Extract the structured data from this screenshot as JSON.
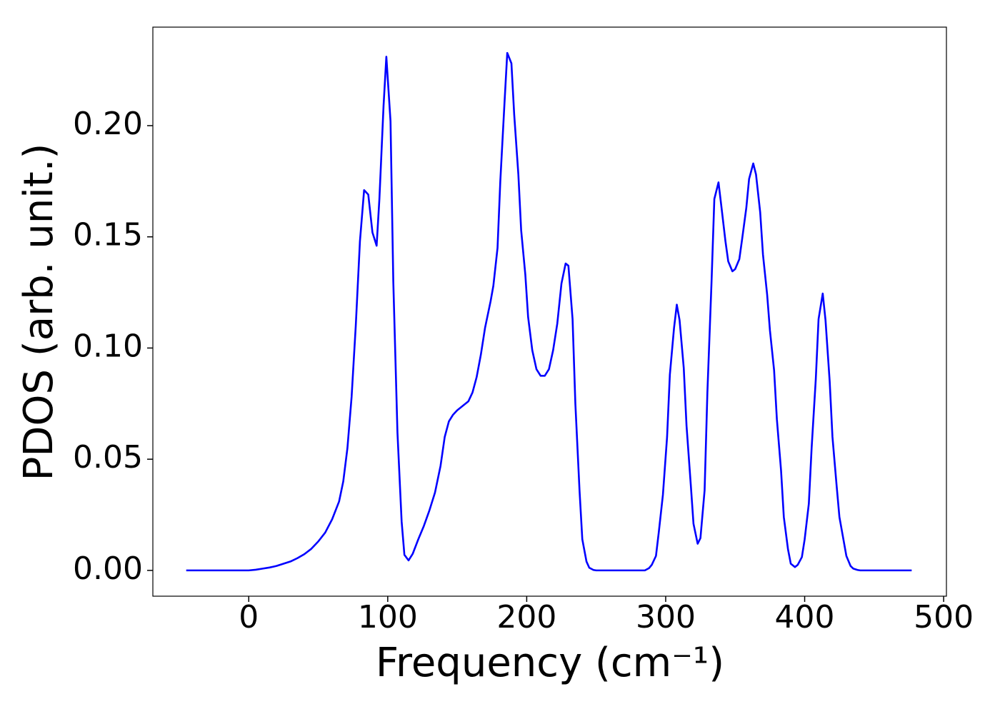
{
  "chart_data": {
    "type": "line",
    "xlabel": "Frequency (cm⁻¹)",
    "ylabel": "PDOS (arb. unit.)",
    "xlim": [
      -69,
      502
    ],
    "ylim": [
      -0.0116,
      0.2443
    ],
    "xticks": [
      0,
      100,
      200,
      300,
      400,
      500
    ],
    "yticks": [
      {
        "value": 0,
        "label": "0.00"
      },
      {
        "value": 0.05,
        "label": "0.05"
      },
      {
        "value": 0.1,
        "label": "0.10"
      },
      {
        "value": 0.15,
        "label": "0.15"
      },
      {
        "value": 0.2,
        "label": "0.20"
      }
    ],
    "grid": false,
    "series": [
      {
        "color": "#0000ff",
        "x": [
          -45,
          -30,
          -15,
          0,
          5,
          10,
          15,
          20,
          25,
          30,
          35,
          40,
          45,
          50,
          55,
          60,
          65,
          68,
          71,
          74,
          77,
          80,
          83,
          86,
          89,
          92,
          94,
          97,
          99,
          102,
          104,
          107,
          110,
          112,
          115,
          118,
          122,
          126,
          130,
          134,
          138,
          141,
          144,
          147,
          150,
          154,
          158,
          161,
          164,
          167,
          170,
          174,
          176,
          179,
          181,
          184,
          186,
          189,
          191,
          194,
          196,
          199,
          201,
          204,
          207,
          210,
          213,
          216,
          219,
          222,
          225,
          228,
          230,
          233,
          235,
          238,
          240,
          243,
          245,
          248,
          250,
          260,
          270,
          280,
          285,
          288,
          290,
          293,
          295,
          298,
          301,
          303,
          306,
          308,
          310,
          313,
          315,
          318,
          320,
          323,
          325,
          328,
          330,
          333,
          335,
          338,
          340,
          343,
          345,
          348,
          350,
          353,
          355,
          358,
          360,
          363,
          365,
          368,
          370,
          373,
          375,
          378,
          380,
          383,
          385,
          388,
          390,
          393,
          395,
          398,
          400,
          403,
          405,
          408,
          410,
          413,
          415,
          418,
          420,
          423,
          425,
          428,
          430,
          433,
          435,
          438,
          440,
          450,
          460,
          470,
          477
        ],
        "values": [
          0,
          0,
          0,
          0,
          0.0003,
          0.0008,
          0.0013,
          0.002,
          0.003,
          0.004,
          0.0055,
          0.0073,
          0.0097,
          0.013,
          0.017,
          0.023,
          0.031,
          0.04,
          0.055,
          0.078,
          0.11,
          0.148,
          0.171,
          0.169,
          0.152,
          0.146,
          0.167,
          0.209,
          0.231,
          0.202,
          0.13,
          0.062,
          0.022,
          0.007,
          0.0045,
          0.0075,
          0.014,
          0.02,
          0.027,
          0.035,
          0.047,
          0.06,
          0.067,
          0.07,
          0.072,
          0.074,
          0.076,
          0.08,
          0.087,
          0.097,
          0.109,
          0.121,
          0.128,
          0.145,
          0.175,
          0.21,
          0.2327,
          0.228,
          0.205,
          0.178,
          0.153,
          0.133,
          0.114,
          0.099,
          0.0905,
          0.0875,
          0.0875,
          0.0905,
          0.099,
          0.111,
          0.129,
          0.138,
          0.137,
          0.113,
          0.075,
          0.036,
          0.014,
          0.004,
          0.0012,
          0.0002,
          0,
          0,
          0,
          0,
          0,
          0.001,
          0.0025,
          0.0065,
          0.017,
          0.034,
          0.06,
          0.088,
          0.109,
          0.1195,
          0.1125,
          0.091,
          0.065,
          0.039,
          0.021,
          0.012,
          0.0145,
          0.036,
          0.08,
          0.13,
          0.167,
          0.1745,
          0.164,
          0.148,
          0.139,
          0.1345,
          0.1355,
          0.14,
          0.149,
          0.163,
          0.176,
          0.183,
          0.178,
          0.161,
          0.142,
          0.124,
          0.108,
          0.09,
          0.068,
          0.045,
          0.024,
          0.0095,
          0.003,
          0.0015,
          0.0025,
          0.006,
          0.014,
          0.03,
          0.055,
          0.086,
          0.113,
          0.1245,
          0.1125,
          0.085,
          0.06,
          0.038,
          0.024,
          0.0135,
          0.0065,
          0.002,
          0.0008,
          0.0002,
          0,
          0,
          0,
          0,
          0
        ]
      }
    ]
  }
}
